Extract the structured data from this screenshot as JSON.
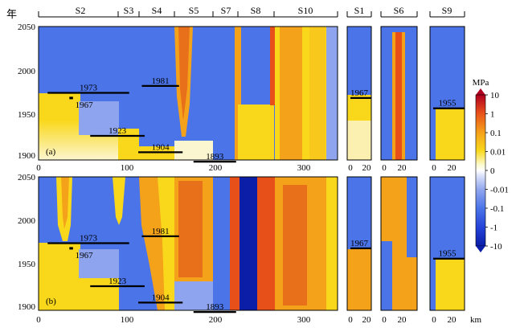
{
  "chart_data": {
    "type": "heatmap",
    "title": "",
    "ylabel": "年",
    "xunit": "km",
    "colorbar": {
      "label": "MPa",
      "ticks": [
        "10",
        "1",
        "0.1",
        "0.01",
        "0",
        "-0.01",
        "-0.1",
        "-1",
        "-10"
      ],
      "scale": "symlog",
      "colors": {
        "pos_max": "#b00020",
        "pos_high": "#e8501a",
        "pos_mid": "#f5a21b",
        "pos_low": "#f9d81c",
        "pos_min": "#fcf9c8",
        "zero": "#ffffff",
        "neg_min": "#d6defa",
        "neg_low": "#8ea4ee",
        "neg_mid": "#4a74e8",
        "neg_high": "#2442d8",
        "neg_max": "#0a1ea8"
      }
    },
    "segments": [
      "S2",
      "S3",
      "S4",
      "S5",
      "S7",
      "S8",
      "S10"
    ],
    "side_segments": [
      "S1",
      "S6",
      "S9"
    ],
    "main_xaxis": {
      "range": [
        0,
        330
      ],
      "ticks": [
        0,
        100,
        200,
        300
      ]
    },
    "side_xaxis": {
      "range": [
        0,
        30
      ],
      "ticks": [
        0,
        20
      ]
    },
    "yaxis": {
      "range": [
        1895,
        2050
      ],
      "ticks": [
        1900,
        1950,
        2000,
        2050
      ]
    },
    "panels": [
      {
        "label": "(a)",
        "main_events": [
          {
            "year": 1973,
            "x": [
              10,
              100
            ],
            "label": "1973"
          },
          {
            "year": 1967,
            "x": [
              34,
              38
            ],
            "label": "1967"
          },
          {
            "year": 1981,
            "x": [
              114,
              155
            ],
            "label": "1981"
          },
          {
            "year": 1923,
            "x": [
              57,
              117
            ],
            "label": "1923"
          },
          {
            "year": 1904,
            "x": [
              110,
              159
            ],
            "label": "1904"
          },
          {
            "year": 1893,
            "x": [
              171,
              218
            ],
            "label": "1893"
          }
        ],
        "side_events": [
          {
            "panel": "S1",
            "year": 1967,
            "label": "1967"
          },
          {
            "panel": "S9",
            "year": 1955,
            "label": "1955"
          }
        ]
      },
      {
        "label": "(b)",
        "main_events": [
          {
            "year": 1973,
            "x": [
              10,
              100
            ],
            "label": "1973"
          },
          {
            "year": 1967,
            "x": [
              34,
              38
            ],
            "label": "1967"
          },
          {
            "year": 1981,
            "x": [
              114,
              155
            ],
            "label": "1981"
          },
          {
            "year": 1923,
            "x": [
              57,
              117
            ],
            "label": "1923"
          },
          {
            "year": 1904,
            "x": [
              110,
              159
            ],
            "label": "1904"
          },
          {
            "year": 1893,
            "x": [
              171,
              218
            ],
            "label": "1893"
          }
        ],
        "side_events": [
          {
            "panel": "S1",
            "year": 1967,
            "label": "1967"
          },
          {
            "panel": "S9",
            "year": 1955,
            "label": "1955"
          }
        ]
      }
    ]
  }
}
